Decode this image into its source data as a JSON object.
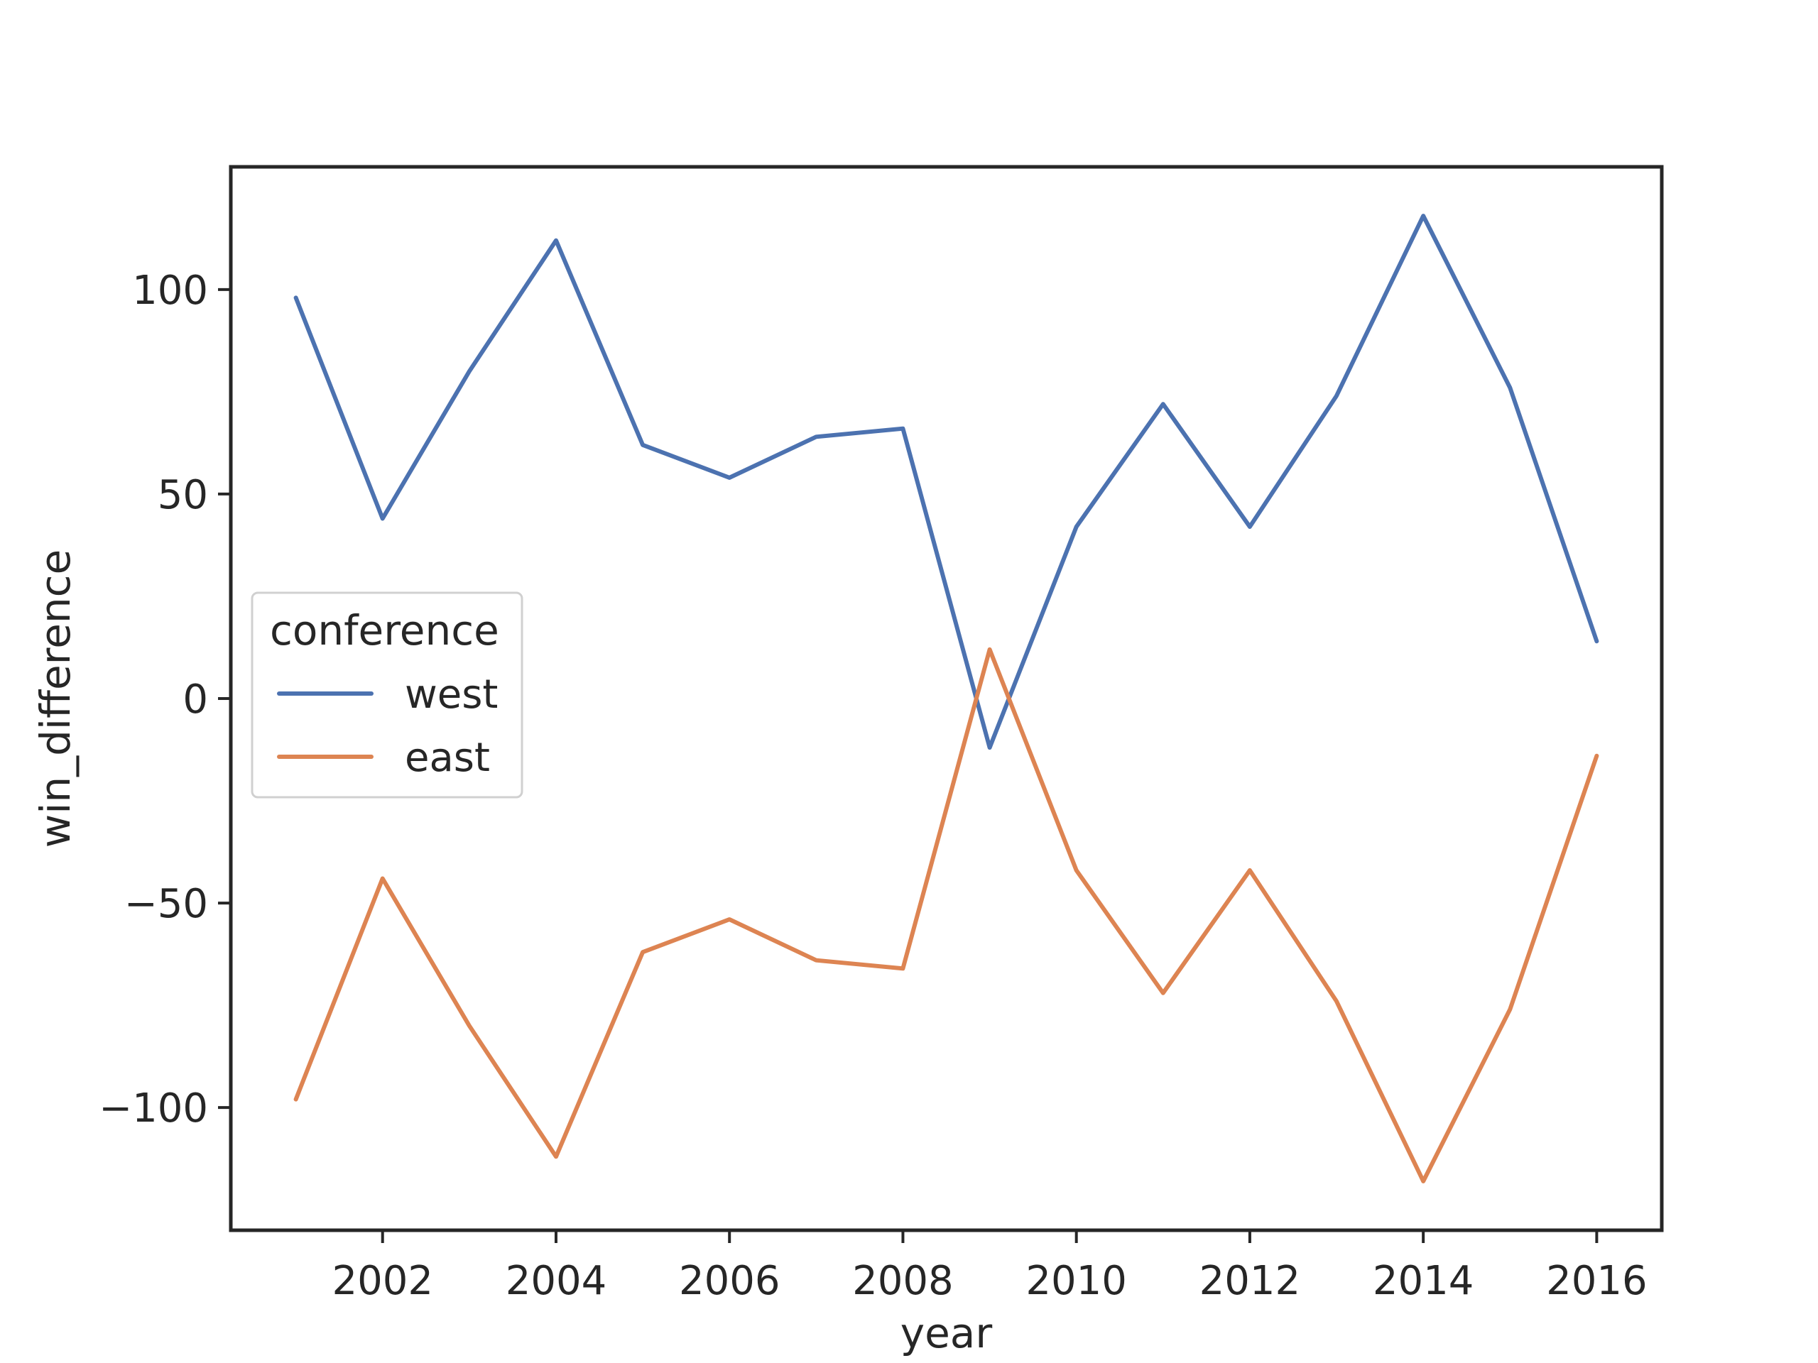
{
  "chart_data": {
    "type": "line",
    "title": "",
    "xlabel": "year",
    "ylabel": "win_difference",
    "x": [
      2001,
      2002,
      2003,
      2004,
      2005,
      2006,
      2007,
      2008,
      2009,
      2010,
      2011,
      2012,
      2013,
      2014,
      2015,
      2016
    ],
    "series": [
      {
        "name": "west",
        "color": "#4c72b0",
        "values": [
          98,
          44,
          80,
          112,
          62,
          54,
          64,
          66,
          -12,
          42,
          72,
          42,
          74,
          118,
          76,
          14
        ]
      },
      {
        "name": "east",
        "color": "#dd8452",
        "values": [
          -98,
          -44,
          -80,
          -112,
          -62,
          -54,
          -64,
          -66,
          12,
          -42,
          -72,
          -42,
          -74,
          -118,
          -76,
          -14
        ]
      }
    ],
    "xlim": [
      2000.25,
      2016.75
    ],
    "ylim": [
      -130,
      130
    ],
    "xticks": [
      2002,
      2004,
      2006,
      2008,
      2010,
      2012,
      2014,
      2016
    ],
    "xtick_labels": [
      "2002",
      "2004",
      "2006",
      "2008",
      "2010",
      "2012",
      "2014",
      "2016"
    ],
    "yticks": [
      -100,
      -50,
      0,
      50,
      100
    ],
    "ytick_labels": [
      "−100",
      "−50",
      "0",
      "50",
      "100"
    ],
    "grid": false,
    "legend": {
      "title": "conference",
      "placement": "center-left"
    }
  }
}
